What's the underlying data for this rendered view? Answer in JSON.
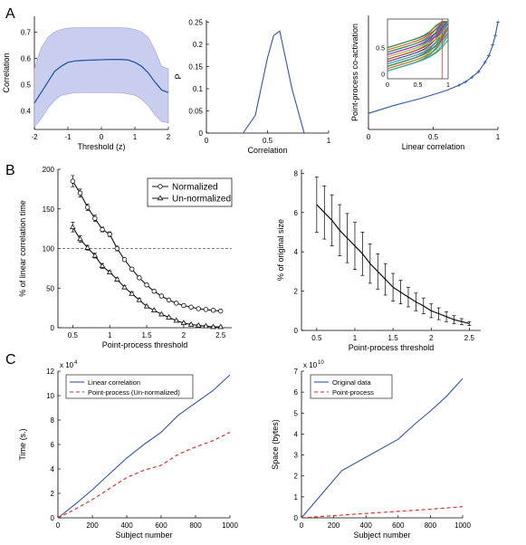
{
  "panel_labels": [
    "A",
    "B",
    "C"
  ],
  "chart_data": [
    {
      "type": "area",
      "panel": "A",
      "xlabel": "Threshold (z)",
      "ylabel": "Correlation",
      "xticks": [
        -2,
        -1,
        0,
        1,
        2
      ],
      "yticks": [
        0.4,
        0.5,
        0.6,
        0.7
      ],
      "xlim": [
        -2,
        2
      ],
      "ylim": [
        0.33,
        0.76
      ],
      "x": [
        -2,
        -1.8,
        -1.6,
        -1.4,
        -1.2,
        -1,
        -0.8,
        -0.6,
        -0.4,
        -0.2,
        0,
        0.2,
        0.4,
        0.6,
        0.8,
        1,
        1.2,
        1.4,
        1.6,
        1.8,
        2
      ],
      "mean": [
        0.43,
        0.47,
        0.51,
        0.55,
        0.57,
        0.585,
        0.59,
        0.592,
        0.593,
        0.594,
        0.595,
        0.596,
        0.596,
        0.596,
        0.594,
        0.585,
        0.57,
        0.545,
        0.51,
        0.48,
        0.47
      ],
      "upper": [
        0.56,
        0.64,
        0.68,
        0.7,
        0.71,
        0.715,
        0.717,
        0.717,
        0.717,
        0.717,
        0.717,
        0.717,
        0.717,
        0.717,
        0.715,
        0.71,
        0.7,
        0.68,
        0.63,
        0.57,
        0.56
      ],
      "lower": [
        0.34,
        0.37,
        0.41,
        0.44,
        0.46,
        0.465,
        0.47,
        0.47,
        0.47,
        0.47,
        0.47,
        0.47,
        0.47,
        0.47,
        0.465,
        0.46,
        0.445,
        0.42,
        0.385,
        0.36,
        0.355
      ],
      "color": "#2b56b0",
      "band_color": "#c9cdee"
    },
    {
      "type": "line",
      "panel": "A",
      "xlabel": "Correlation",
      "ylabel": "P",
      "xticks": [
        0,
        0.5,
        1
      ],
      "yticks": [
        0,
        0.05,
        0.1,
        0.15,
        0.2,
        0.25
      ],
      "xlim": [
        0,
        1
      ],
      "ylim": [
        0,
        0.255
      ],
      "x": [
        0.3,
        0.4,
        0.5,
        0.55,
        0.6,
        0.7,
        0.8
      ],
      "y": [
        0,
        0.04,
        0.17,
        0.22,
        0.23,
        0.1,
        0
      ],
      "color": "#2b56b0"
    },
    {
      "type": "line",
      "panel": "A",
      "xlabel": "Linear correlation",
      "ylabel": "Point-process co-activation",
      "xticks": [
        0,
        0.5,
        1
      ],
      "xlim": [
        0,
        1
      ],
      "ylim": [
        0,
        0.85
      ],
      "x": [
        0,
        0.1,
        0.2,
        0.3,
        0.4,
        0.5,
        0.6,
        0.7,
        0.75,
        0.8,
        0.85,
        0.9,
        0.93,
        0.96,
        0.98,
        1
      ],
      "y": [
        0.12,
        0.15,
        0.18,
        0.205,
        0.23,
        0.26,
        0.29,
        0.33,
        0.355,
        0.39,
        0.43,
        0.5,
        0.55,
        0.63,
        0.7,
        0.8
      ],
      "color": "#2b56b0",
      "inset": {
        "xticks": [
          0,
          0.5,
          1
        ],
        "yticks": [
          0,
          0.5
        ],
        "xlim": [
          0,
          1
        ],
        "ylim": [
          -0.1,
          1.05
        ]
      }
    },
    {
      "type": "line",
      "panel": "B",
      "xlabel": "Point-process threshold",
      "ylabel": "% of linear correlation time",
      "xticks": [
        0.5,
        1,
        1.5,
        2,
        2.5
      ],
      "yticks": [
        0,
        50,
        100,
        150,
        200
      ],
      "xlim": [
        0.3,
        2.65
      ],
      "ylim": [
        0,
        200
      ],
      "reference_line": 100,
      "legend": [
        "Normalized",
        "Un-normalized"
      ],
      "x": [
        0.5,
        0.6,
        0.7,
        0.8,
        0.9,
        1,
        1.1,
        1.2,
        1.3,
        1.4,
        1.5,
        1.6,
        1.7,
        1.8,
        1.9,
        2,
        2.1,
        2.2,
        2.3,
        2.4,
        2.5
      ],
      "series": [
        {
          "name": "Normalized",
          "values": [
            185,
            170,
            152,
            138,
            124,
            118,
            100,
            86,
            74,
            63,
            54,
            46,
            40,
            35,
            31,
            28,
            26,
            24,
            23,
            22,
            21
          ],
          "errors": [
            7,
            5,
            4,
            4,
            3,
            3,
            3,
            2,
            2,
            2,
            2,
            2,
            2,
            1,
            1,
            1,
            1,
            1,
            1,
            1,
            1
          ]
        },
        {
          "name": "Un-normalized",
          "values": [
            127,
            112,
            101,
            91,
            78,
            70,
            61,
            51,
            43,
            35,
            27,
            22,
            17,
            13,
            9,
            6,
            4,
            3,
            2,
            1,
            1
          ],
          "errors": [
            6,
            4,
            3,
            3,
            3,
            2,
            2,
            2,
            2,
            2,
            1,
            1,
            1,
            1,
            1,
            1,
            1,
            1,
            1,
            1,
            1
          ]
        }
      ]
    },
    {
      "type": "line",
      "panel": "B",
      "xlabel": "Point-process threshold",
      "ylabel": "% of original size",
      "xticks": [
        0.5,
        1,
        1.5,
        2,
        2.5
      ],
      "yticks": [
        0,
        2,
        4,
        6,
        8
      ],
      "xlim": [
        0.3,
        2.65
      ],
      "ylim": [
        0,
        8.2
      ],
      "x": [
        0.5,
        0.6,
        0.7,
        0.8,
        0.9,
        1,
        1.1,
        1.2,
        1.3,
        1.4,
        1.5,
        1.6,
        1.7,
        1.8,
        1.9,
        2,
        2.1,
        2.2,
        2.3,
        2.4,
        2.5
      ],
      "values": [
        6.4,
        6.0,
        5.6,
        5.1,
        4.7,
        4.3,
        3.9,
        3.4,
        3.0,
        2.6,
        2.2,
        1.95,
        1.7,
        1.45,
        1.25,
        1.0,
        0.85,
        0.7,
        0.55,
        0.45,
        0.35
      ],
      "errors": [
        1.4,
        1.35,
        1.3,
        1.3,
        1.25,
        1.2,
        1.1,
        1.0,
        0.9,
        0.8,
        0.7,
        0.6,
        0.5,
        0.45,
        0.4,
        0.35,
        0.3,
        0.25,
        0.2,
        0.15,
        0.1
      ],
      "color": "#111111"
    },
    {
      "type": "line",
      "panel": "C",
      "xlabel": "Subject number",
      "ylabel": "Time (s.)",
      "scale_label": "x 10",
      "scale_exp": "4",
      "xticks": [
        0,
        200,
        400,
        600,
        800,
        1000
      ],
      "yticks": [
        0,
        2,
        4,
        6,
        8,
        10,
        12
      ],
      "xlim": [
        0,
        1000
      ],
      "ylim": [
        0,
        12
      ],
      "legend": [
        "Linear correlation",
        "Point-process (Un-normalized)"
      ],
      "x": [
        0,
        100,
        200,
        300,
        400,
        500,
        600,
        700,
        800,
        900,
        1000
      ],
      "series": [
        {
          "name": "Linear correlation",
          "values": [
            0,
            1.1,
            2.3,
            3.6,
            4.9,
            6.0,
            7.0,
            8.4,
            9.4,
            10.4,
            11.7
          ],
          "color": "#2b56b0",
          "dash": ""
        },
        {
          "name": "Point-process (Un-normalized)",
          "values": [
            0,
            0.7,
            1.5,
            2.4,
            3.3,
            3.9,
            4.3,
            5.2,
            5.8,
            6.3,
            7.0
          ],
          "color": "#e0201b",
          "dash": "4,3"
        }
      ]
    },
    {
      "type": "line",
      "panel": "C",
      "xlabel": "Subject number",
      "ylabel": "Space (bytes)",
      "scale_label": "x 10",
      "scale_exp": "10",
      "xticks": [
        0,
        200,
        400,
        600,
        800,
        1000
      ],
      "yticks": [
        0,
        1,
        2,
        3,
        4,
        5,
        6,
        7
      ],
      "xlim": [
        0,
        1000
      ],
      "ylim": [
        0,
        7
      ],
      "legend": [
        "Original data",
        "Point-process"
      ],
      "x": [
        0,
        250,
        600,
        700,
        800,
        900,
        1000
      ],
      "series": [
        {
          "name": "Original data",
          "values": [
            0,
            2.25,
            3.75,
            4.45,
            5.1,
            5.8,
            6.65
          ],
          "color": "#2b56b0",
          "dash": ""
        },
        {
          "name": "Point-process",
          "values": [
            0,
            0.13,
            0.31,
            0.36,
            0.41,
            0.47,
            0.53
          ],
          "color": "#e0201b",
          "dash": "4,3"
        }
      ]
    }
  ]
}
